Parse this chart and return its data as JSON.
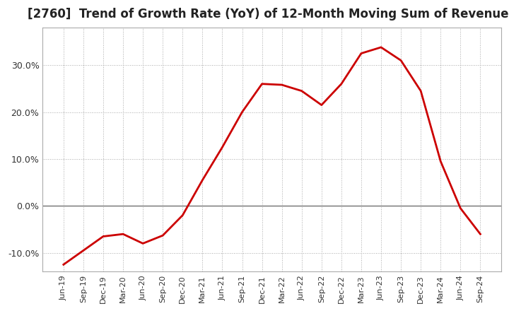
{
  "title": "[2760]  Trend of Growth Rate (YoY) of 12-Month Moving Sum of Revenues",
  "title_fontsize": 12,
  "background_color": "#ffffff",
  "line_color": "#cc0000",
  "grid_color": "#aaaaaa",
  "zero_line_color": "#555555",
  "tick_label_color": "#333333",
  "spine_color": "#aaaaaa",
  "ylim": [
    -0.14,
    0.38
  ],
  "yticks": [
    -0.1,
    0.0,
    0.1,
    0.2,
    0.3
  ],
  "x_labels": [
    "Jun-19",
    "Sep-19",
    "Dec-19",
    "Mar-20",
    "Jun-20",
    "Sep-20",
    "Dec-20",
    "Mar-21",
    "Jun-21",
    "Sep-21",
    "Dec-21",
    "Mar-22",
    "Jun-22",
    "Sep-22",
    "Dec-22",
    "Mar-23",
    "Jun-23",
    "Sep-23",
    "Dec-23",
    "Mar-24",
    "Jun-24",
    "Sep-24"
  ],
  "y_values": [
    -0.125,
    -0.095,
    -0.065,
    -0.06,
    -0.08,
    -0.063,
    -0.02,
    0.055,
    0.125,
    0.2,
    0.26,
    0.258,
    0.245,
    0.215,
    0.26,
    0.325,
    0.338,
    0.31,
    0.245,
    0.095,
    -0.005,
    -0.06
  ]
}
